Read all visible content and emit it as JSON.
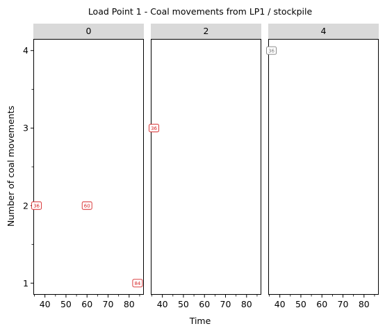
{
  "chart_data": {
    "type": "scatter",
    "title": "Load Point 1 - Coal movements from LP1 / stockpile",
    "xlabel": "Time",
    "ylabel": "Number of coal movements",
    "xlim": [
      34.5,
      87
    ],
    "ylim": [
      0.85,
      4.15
    ],
    "x_ticks": [
      40,
      50,
      60,
      70,
      80
    ],
    "x_minor_ticks": [
      35,
      45,
      55,
      65,
      75,
      85
    ],
    "y_ticks": [
      1,
      2,
      3,
      4
    ],
    "y_minor_ticks": [
      1.5,
      2.5,
      3.5
    ],
    "grid": false,
    "panels": [
      {
        "strip": "0",
        "points": [
          {
            "x": 36,
            "y": 2,
            "label": "36",
            "color": "#d62728"
          },
          {
            "x": 60,
            "y": 2,
            "label": "60",
            "color": "#d62728"
          },
          {
            "x": 84,
            "y": 1,
            "label": "84",
            "color": "#d62728"
          }
        ]
      },
      {
        "strip": "2",
        "points": [
          {
            "x": 36,
            "y": 3,
            "label": "36",
            "color": "#d62728"
          }
        ]
      },
      {
        "strip": "4",
        "points": [
          {
            "x": 36,
            "y": 4,
            "label": "36",
            "color": "#7f7f7f"
          }
        ]
      }
    ]
  }
}
